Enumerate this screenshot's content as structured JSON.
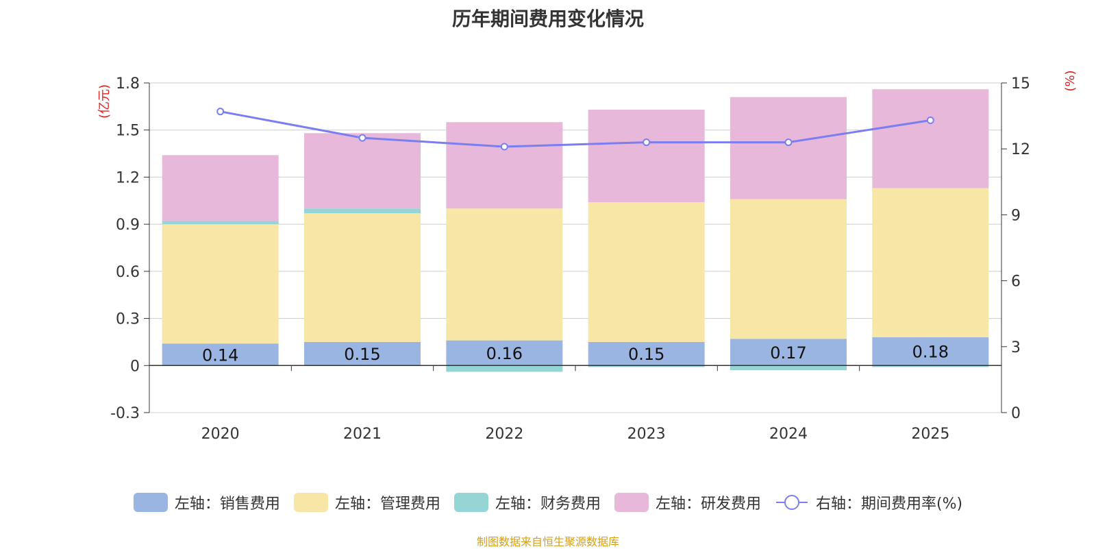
{
  "title": "历年期间费用变化情况",
  "source": "制图数据来自恒生聚源数据库",
  "chart_data": {
    "type": "bar",
    "stacked": true,
    "title": "历年期间费用变化情况",
    "categories": [
      "2020",
      "2021",
      "2022",
      "2023",
      "2024",
      "2025"
    ],
    "left_axis": {
      "label": "(亿元)",
      "ylim": [
        -0.3,
        1.8
      ],
      "ticks": [
        -0.3,
        0,
        0.3,
        0.6,
        0.9,
        1.2,
        1.5,
        1.8
      ],
      "tick_labels": [
        "-0.3",
        "0",
        "0.3",
        "0.6",
        "0.9",
        "1.2",
        "1.5",
        "1.8"
      ]
    },
    "right_axis": {
      "label": "(%)",
      "ylim": [
        0,
        15
      ],
      "ticks": [
        0,
        3,
        6,
        9,
        12,
        15
      ],
      "tick_labels": [
        "0",
        "3",
        "6",
        "9",
        "12",
        "15"
      ]
    },
    "series": [
      {
        "name": "左轴：销售费用",
        "axis": "left",
        "color": "#9bb5e2",
        "values": [
          0.14,
          0.15,
          0.16,
          0.15,
          0.17,
          0.18
        ],
        "labels": [
          "0.14",
          "0.15",
          "0.16",
          "0.15",
          "0.17",
          "0.18"
        ]
      },
      {
        "name": "左轴：管理费用",
        "axis": "left",
        "color": "#f8e6a6",
        "values": [
          0.76,
          0.82,
          0.84,
          0.89,
          0.89,
          0.95
        ]
      },
      {
        "name": "左轴：财务费用",
        "axis": "left",
        "color": "#95d5d5",
        "values": [
          0.02,
          0.03,
          -0.04,
          -0.01,
          -0.03,
          -0.01
        ]
      },
      {
        "name": "左轴：研发费用",
        "axis": "left",
        "color": "#e7b8da",
        "values": [
          0.42,
          0.48,
          0.55,
          0.59,
          0.65,
          0.63
        ]
      },
      {
        "name": "右轴：期间费用率(%)",
        "axis": "right",
        "type": "line",
        "color": "#7b7ef0",
        "values": [
          13.7,
          12.5,
          12.1,
          12.3,
          12.3,
          13.3
        ]
      }
    ]
  }
}
